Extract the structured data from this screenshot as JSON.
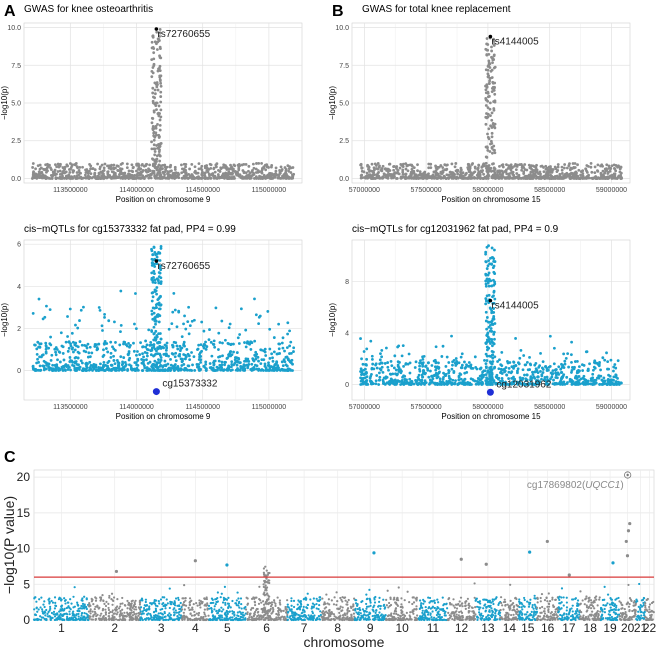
{
  "panel_labels": {
    "a": "A",
    "b": "B",
    "c": "C"
  },
  "colors": {
    "grey": "#8c8c8c",
    "blue": "#1aa0cc",
    "cpg": "#1f2fd6",
    "sig": "#d83a3a",
    "lead": "#000000"
  },
  "chart_data": [
    {
      "id": "A1",
      "type": "scatter",
      "title": "GWAS for knee osteoarthritis",
      "xlabel": "Position on chromosome 9",
      "ylabel": "−log10(p)",
      "xlim": [
        113150000,
        115250000
      ],
      "ylim": [
        -0.3,
        10.3
      ],
      "xticks": [
        113500000,
        114000000,
        114500000,
        115000000
      ],
      "xtick_labels": [
        "113500000",
        "114000000",
        "114500000",
        "115000000"
      ],
      "yticks": [
        0,
        2.5,
        5,
        7.5,
        10
      ],
      "ytick_labels": [
        "0.0",
        "2.5",
        "5.0",
        "7.5",
        "10.0"
      ],
      "color": "grey",
      "peak_x": 114150000,
      "peak_value": 9.9,
      "lead_snp": {
        "name": "rs72760655",
        "x": 114150000,
        "y": 9.9
      }
    },
    {
      "id": "B1",
      "type": "scatter",
      "title": "GWAS for total knee replacement",
      "xlabel": "Position on chromosome 15",
      "ylabel": "−log10(p)",
      "xlim": [
        56900000,
        59150000
      ],
      "ylim": [
        -0.3,
        10.3
      ],
      "xticks": [
        57000000,
        57500000,
        58000000,
        58500000,
        59000000
      ],
      "xtick_labels": [
        "57000000",
        "57500000",
        "58000000",
        "58500000",
        "59000000"
      ],
      "yticks": [
        0,
        2.5,
        5,
        7.5,
        10
      ],
      "ytick_labels": [
        "0.0",
        "2.5",
        "5.0",
        "7.5",
        "10.0"
      ],
      "color": "grey",
      "peak_x": 58020000,
      "peak_value": 9.4,
      "lead_snp": {
        "name": "rs4144005",
        "x": 58020000,
        "y": 9.4
      }
    },
    {
      "id": "A2",
      "type": "scatter",
      "title": "cis−mQTLs for cg15373332 fat pad, PP4 = 0.99",
      "xlabel": "Position on chromosome 9",
      "ylabel": "−log10(p)",
      "xlim": [
        113150000,
        115250000
      ],
      "ylim": [
        -1.4,
        6.2
      ],
      "xticks": [
        113500000,
        114000000,
        114500000,
        115000000
      ],
      "xtick_labels": [
        "113500000",
        "114000000",
        "114500000",
        "115000000"
      ],
      "yticks": [
        0,
        2,
        4,
        6
      ],
      "ytick_labels": [
        "0",
        "2",
        "4",
        "6"
      ],
      "color": "blue",
      "peak_x": 114150000,
      "peak_value": 5.9,
      "lead_snp": {
        "name": "rs72760655",
        "x": 114150000,
        "y": 5.2
      },
      "cpg": {
        "name": "cg15373332",
        "x": 114150000,
        "y": -1.0
      }
    },
    {
      "id": "B2",
      "type": "scatter",
      "title": "cis−mQTLs for cg12031962 fat pad, PP4 = 0.9",
      "xlabel": "Position on chromosome 15",
      "ylabel": "−log10(p)",
      "xlim": [
        56900000,
        59150000
      ],
      "ylim": [
        -1.2,
        11.2
      ],
      "xticks": [
        57000000,
        57500000,
        58000000,
        58500000,
        59000000
      ],
      "xtick_labels": [
        "57000000",
        "57500000",
        "58000000",
        "58500000",
        "59000000"
      ],
      "yticks": [
        0,
        4,
        8
      ],
      "ytick_labels": [
        "0",
        "4",
        "8"
      ],
      "color": "blue",
      "peak_x": 58020000,
      "peak_value": 10.8,
      "lead_snp": {
        "name": "rs4144005",
        "x": 58020000,
        "y": 6.5
      },
      "cpg": {
        "name": "cg12031962",
        "x": 58020000,
        "y": -0.6
      }
    },
    {
      "id": "C",
      "type": "scatter",
      "title": "",
      "xlabel": "chromosome",
      "ylabel": "−log10(P value)",
      "xlim": [
        0,
        22
      ],
      "ylim": [
        0,
        21
      ],
      "yticks": [
        0,
        5,
        10,
        15,
        20
      ],
      "ytick_labels": [
        "0",
        "5",
        "10",
        "15",
        "20"
      ],
      "chromosomes": [
        "1",
        "2",
        "3",
        "4",
        "5",
        "6",
        "7",
        "8",
        "9",
        "10",
        "11",
        "12",
        "13",
        "14",
        "15",
        "16",
        "17",
        "18",
        "19",
        "20",
        "21",
        "22"
      ],
      "chrom_widths": [
        2.45,
        2.3,
        1.85,
        1.2,
        1.65,
        1.85,
        1.5,
        1.5,
        1.4,
        1.45,
        1.3,
        1.25,
        1.1,
        0.82,
        0.82,
        0.95,
        0.95,
        0.95,
        0.82,
        0.75,
        0.4,
        0.4
      ],
      "significance_line": 6,
      "top_hit": {
        "name": "cg17869802",
        "gene": "UQCC1",
        "chrom": "20",
        "value": 20.3
      }
    }
  ]
}
